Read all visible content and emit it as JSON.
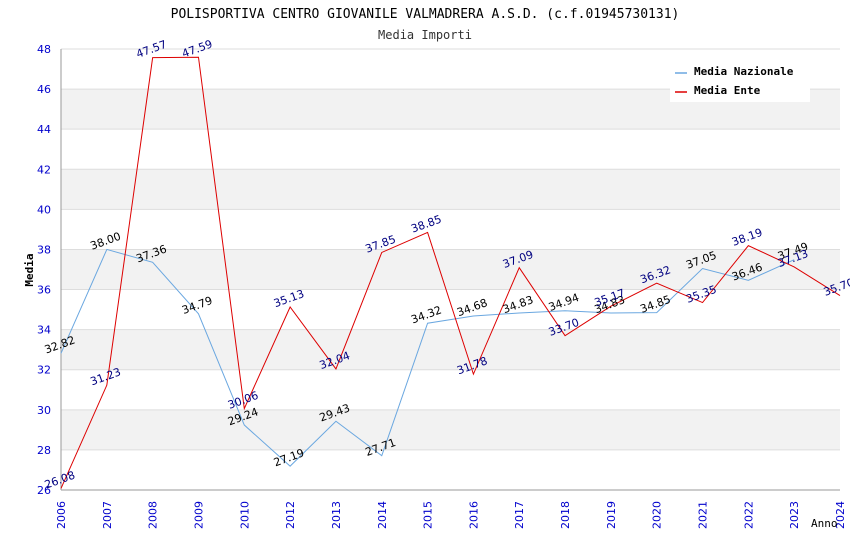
{
  "chart_data": {
    "type": "line",
    "title": "POLISPORTIVA CENTRO GIOVANILE VALMADRERA A.S.D. (c.f.01945730131)",
    "subtitle": "Media Importi",
    "xlabel": "Anno",
    "ylabel": "Media",
    "ylim": [
      26,
      48
    ],
    "yticks": [
      "26",
      "28",
      "30",
      "32",
      "34",
      "36",
      "38",
      "40",
      "42",
      "44",
      "46",
      "48"
    ],
    "categories": [
      "2006",
      "2007",
      "2008",
      "2009",
      "2010",
      "2012",
      "2013",
      "2014",
      "2015",
      "2016",
      "2017",
      "2018",
      "2019",
      "2020",
      "2021",
      "2022",
      "2023",
      "2024"
    ],
    "legend_position": "top-right",
    "series": [
      {
        "name": "Media Nazionale",
        "color": "#6aa7e0",
        "label_color": "#000000",
        "values": [
          32.82,
          38.0,
          37.36,
          34.79,
          29.24,
          27.19,
          29.43,
          27.71,
          34.32,
          34.68,
          34.83,
          34.94,
          34.83,
          34.85,
          37.05,
          36.46,
          37.49,
          null
        ],
        "labels": [
          "32.82",
          "38.00",
          "37.36",
          "34.79",
          "29.24",
          "27.19",
          "29.43",
          "27.71",
          "34.32",
          "34.68",
          "34.83",
          "34.94",
          "34.83",
          "34.85",
          "37.05",
          "36.46",
          "37.49",
          ""
        ]
      },
      {
        "name": "Media Ente",
        "color": "#dd0000",
        "label_color": "#000080",
        "values": [
          26.08,
          31.23,
          47.57,
          47.59,
          30.06,
          35.13,
          32.04,
          37.85,
          38.85,
          31.78,
          37.09,
          33.7,
          35.17,
          36.32,
          35.35,
          38.19,
          37.13,
          35.7
        ],
        "labels": [
          "26.08",
          "31.23",
          "47.57",
          "47.59",
          "30.06",
          "35.13",
          "32.04",
          "37.85",
          "38.85",
          "31.78",
          "37.09",
          "33.70",
          "35.17",
          "36.32",
          "35.35",
          "38.19",
          "37.13",
          "35.70"
        ]
      }
    ]
  }
}
